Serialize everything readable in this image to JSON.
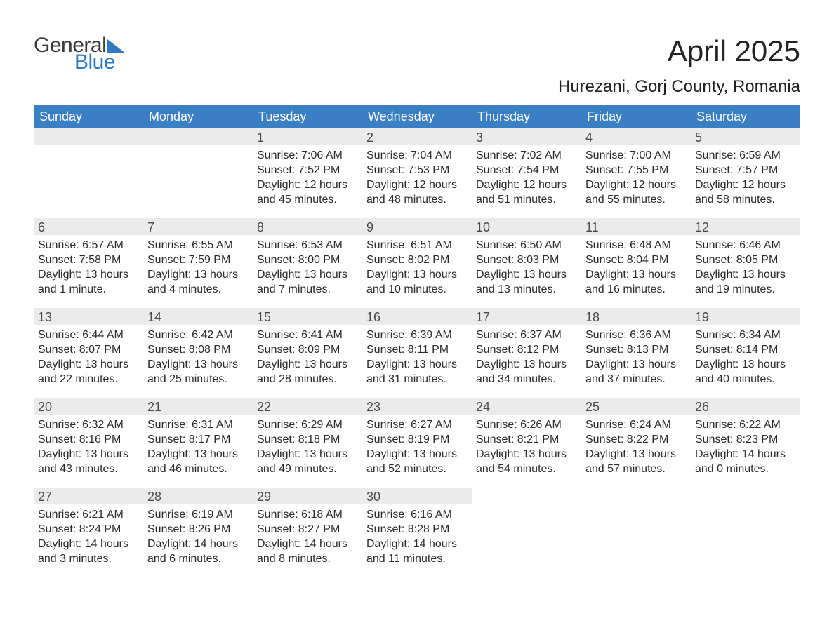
{
  "logo": {
    "word1": "General",
    "word2": "Blue",
    "color_general": "#3a3a3a",
    "color_blue": "#2f78c2",
    "tri_color": "#2f78c2"
  },
  "title": "April 2025",
  "location": "Hurezani, Gorj County, Romania",
  "theme": {
    "header_bg": "#3a7fc4",
    "header_fg": "#ffffff",
    "daynum_bg": "#ebebeb",
    "daynum_fg": "#4a4a4a",
    "row_border": "#3a7fc4",
    "text_color": "#2b2b2b",
    "page_bg": "#ffffff"
  },
  "weekdays": [
    "Sunday",
    "Monday",
    "Tuesday",
    "Wednesday",
    "Thursday",
    "Friday",
    "Saturday"
  ],
  "labels": {
    "sunrise": "Sunrise:",
    "sunset": "Sunset:",
    "daylight": "Daylight:"
  },
  "weeks": [
    [
      null,
      null,
      {
        "n": "1",
        "sr": "7:06 AM",
        "ss": "7:52 PM",
        "dl": "12 hours and 45 minutes."
      },
      {
        "n": "2",
        "sr": "7:04 AM",
        "ss": "7:53 PM",
        "dl": "12 hours and 48 minutes."
      },
      {
        "n": "3",
        "sr": "7:02 AM",
        "ss": "7:54 PM",
        "dl": "12 hours and 51 minutes."
      },
      {
        "n": "4",
        "sr": "7:00 AM",
        "ss": "7:55 PM",
        "dl": "12 hours and 55 minutes."
      },
      {
        "n": "5",
        "sr": "6:59 AM",
        "ss": "7:57 PM",
        "dl": "12 hours and 58 minutes."
      }
    ],
    [
      {
        "n": "6",
        "sr": "6:57 AM",
        "ss": "7:58 PM",
        "dl": "13 hours and 1 minute."
      },
      {
        "n": "7",
        "sr": "6:55 AM",
        "ss": "7:59 PM",
        "dl": "13 hours and 4 minutes."
      },
      {
        "n": "8",
        "sr": "6:53 AM",
        "ss": "8:00 PM",
        "dl": "13 hours and 7 minutes."
      },
      {
        "n": "9",
        "sr": "6:51 AM",
        "ss": "8:02 PM",
        "dl": "13 hours and 10 minutes."
      },
      {
        "n": "10",
        "sr": "6:50 AM",
        "ss": "8:03 PM",
        "dl": "13 hours and 13 minutes."
      },
      {
        "n": "11",
        "sr": "6:48 AM",
        "ss": "8:04 PM",
        "dl": "13 hours and 16 minutes."
      },
      {
        "n": "12",
        "sr": "6:46 AM",
        "ss": "8:05 PM",
        "dl": "13 hours and 19 minutes."
      }
    ],
    [
      {
        "n": "13",
        "sr": "6:44 AM",
        "ss": "8:07 PM",
        "dl": "13 hours and 22 minutes."
      },
      {
        "n": "14",
        "sr": "6:42 AM",
        "ss": "8:08 PM",
        "dl": "13 hours and 25 minutes."
      },
      {
        "n": "15",
        "sr": "6:41 AM",
        "ss": "8:09 PM",
        "dl": "13 hours and 28 minutes."
      },
      {
        "n": "16",
        "sr": "6:39 AM",
        "ss": "8:11 PM",
        "dl": "13 hours and 31 minutes."
      },
      {
        "n": "17",
        "sr": "6:37 AM",
        "ss": "8:12 PM",
        "dl": "13 hours and 34 minutes."
      },
      {
        "n": "18",
        "sr": "6:36 AM",
        "ss": "8:13 PM",
        "dl": "13 hours and 37 minutes."
      },
      {
        "n": "19",
        "sr": "6:34 AM",
        "ss": "8:14 PM",
        "dl": "13 hours and 40 minutes."
      }
    ],
    [
      {
        "n": "20",
        "sr": "6:32 AM",
        "ss": "8:16 PM",
        "dl": "13 hours and 43 minutes."
      },
      {
        "n": "21",
        "sr": "6:31 AM",
        "ss": "8:17 PM",
        "dl": "13 hours and 46 minutes."
      },
      {
        "n": "22",
        "sr": "6:29 AM",
        "ss": "8:18 PM",
        "dl": "13 hours and 49 minutes."
      },
      {
        "n": "23",
        "sr": "6:27 AM",
        "ss": "8:19 PM",
        "dl": "13 hours and 52 minutes."
      },
      {
        "n": "24",
        "sr": "6:26 AM",
        "ss": "8:21 PM",
        "dl": "13 hours and 54 minutes."
      },
      {
        "n": "25",
        "sr": "6:24 AM",
        "ss": "8:22 PM",
        "dl": "13 hours and 57 minutes."
      },
      {
        "n": "26",
        "sr": "6:22 AM",
        "ss": "8:23 PM",
        "dl": "14 hours and 0 minutes."
      }
    ],
    [
      {
        "n": "27",
        "sr": "6:21 AM",
        "ss": "8:24 PM",
        "dl": "14 hours and 3 minutes."
      },
      {
        "n": "28",
        "sr": "6:19 AM",
        "ss": "8:26 PM",
        "dl": "14 hours and 6 minutes."
      },
      {
        "n": "29",
        "sr": "6:18 AM",
        "ss": "8:27 PM",
        "dl": "14 hours and 8 minutes."
      },
      {
        "n": "30",
        "sr": "6:16 AM",
        "ss": "8:28 PM",
        "dl": "14 hours and 11 minutes."
      },
      null,
      null,
      null
    ]
  ]
}
